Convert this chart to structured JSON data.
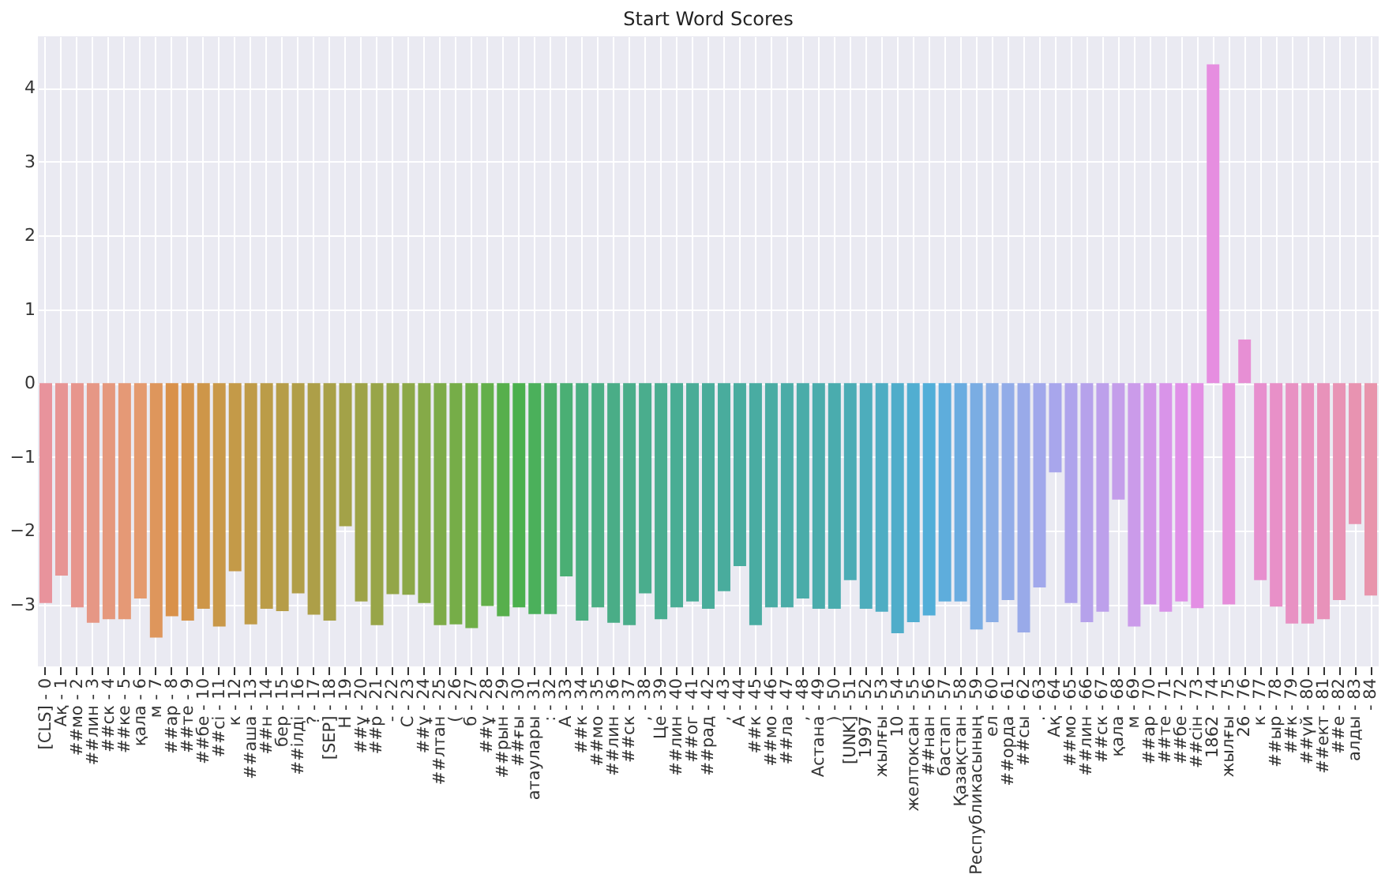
{
  "chart_data": {
    "type": "bar",
    "title": "Start Word Scores",
    "categories": [
      "[CLS] - 0",
      "Ақ - 1",
      "##мо - 2",
      "##лин - 3",
      "##ск - 4",
      "##ке - 5",
      "қала - 6",
      "м - 7",
      "##ар - 8",
      "##те - 9",
      "##бе - 10",
      "##сі - 11",
      "к - 12",
      "##аша - 13",
      "##н - 14",
      "бер - 15",
      "##ілді - 16",
      "? - 17",
      "[SEP] - 18",
      "Н - 19",
      "##ұ - 20",
      "##р - 21",
      "- - 22",
      "С - 23",
      "##ұ - 24",
      "##лтан - 25",
      "( - 26",
      "б - 27",
      "##ұ - 28",
      "##рын - 29",
      "##ғы - 30",
      "атаулары - 31",
      ": - 32",
      "А - 33",
      "##к - 34",
      "##мо - 35",
      "##лин - 36",
      "##ск - 37",
      ", - 38",
      "Це - 39",
      "##лин - 40",
      "##ог - 41",
      "##рад - 42",
      ", - 43",
      "А - 44",
      "##к - 45",
      "##мо - 46",
      "##ла - 47",
      ", - 48",
      "Астана - 49",
      ") - 50",
      "[UNK] - 51",
      "1997 - 52",
      "жылғы - 53",
      "10 - 54",
      "желтоксан - 55",
      "##нан - 56",
      "бастап - 57",
      "Қазақстан - 58",
      "Республикасының - 59",
      "ел - 60",
      "##орда - 61",
      "##сы - 62",
      ". - 63",
      "Ақ - 64",
      "##мо - 65",
      "##лин - 66",
      "##ск - 67",
      "қала - 68",
      "м - 69",
      "##ар - 70",
      "##те - 71",
      "##бе - 72",
      "##сін - 73",
      "1862 - 74",
      "жылғы - 75",
      "26 - 76",
      "к - 77",
      "##ыр - 78",
      "##к - 79",
      "##үй - 80",
      "##ект - 81",
      "##е - 82",
      "алды - 83",
      "- 84"
    ],
    "values": [
      -2.98,
      -2.61,
      -3.04,
      -3.25,
      -3.2,
      -3.2,
      -2.92,
      -3.45,
      -3.16,
      -3.22,
      -3.06,
      -3.3,
      -2.55,
      -3.27,
      -3.06,
      -3.09,
      -2.85,
      -3.14,
      -3.22,
      -1.94,
      -2.96,
      -3.28,
      -2.86,
      -2.87,
      -2.98,
      -3.28,
      -3.27,
      -3.32,
      -3.02,
      -3.16,
      -3.04,
      -3.13,
      -3.13,
      -2.62,
      -3.22,
      -3.04,
      -3.25,
      -3.28,
      -2.85,
      -3.2,
      -3.04,
      -2.96,
      -3.06,
      -2.82,
      -2.48,
      -3.28,
      -3.04,
      -3.04,
      -2.92,
      -3.06,
      -3.06,
      -2.67,
      -3.06,
      -3.1,
      -3.39,
      -3.24,
      -3.15,
      -2.96,
      -2.96,
      -3.34,
      -3.24,
      -2.94,
      -3.38,
      -2.77,
      -1.21,
      -2.98,
      -3.24,
      -3.1,
      -1.58,
      -3.3,
      -3.0,
      -3.1,
      -2.96,
      -3.05,
      4.32,
      -3.0,
      0.59,
      -2.67,
      -3.03,
      -3.26,
      -3.26,
      -3.2,
      -2.94,
      -1.91,
      -2.88
    ],
    "colors": [
      "#e8939c",
      "#e79494",
      "#e7958d",
      "#e69785",
      "#e5987d",
      "#e59976",
      "#e49a6e",
      "#de965c",
      "#d9914a",
      "#d4934a",
      "#ce9649",
      "#c99849",
      "#c49a48",
      "#bf9b48",
      "#bb9c48",
      "#b69d48",
      "#b19e48",
      "#ad9f48",
      "#a8a048",
      "#a3a248",
      "#9ea348",
      "#98a548",
      "#93a648",
      "#8ca848",
      "#85aa48",
      "#7dab48",
      "#76ad48",
      "#6fae48",
      "#63af4a",
      "#57af4c",
      "#4bb04e",
      "#4bb05b",
      "#4baf67",
      "#4aaf74",
      "#4aae80",
      "#4aae83",
      "#4aad87",
      "#4aad8a",
      "#4aad8d",
      "#49ad90",
      "#49ad94",
      "#49ac97",
      "#49ac9a",
      "#49ac9d",
      "#49ac9f",
      "#49aca2",
      "#4aaca4",
      "#4aaca7",
      "#4aaca9",
      "#4aacac",
      "#4aacae",
      "#4bacb5",
      "#4dadbc",
      "#4eadc3",
      "#4fadca",
      "#51aed1",
      "#52aed8",
      "#5eaddc",
      "#6aace0",
      "#7aade3",
      "#8aaee6",
      "#92ace8",
      "#99aae9",
      "#a1a8eb",
      "#a8a6ec",
      "#afa4ec",
      "#b6a2eb",
      "#bda0eb",
      "#c49eea",
      "#cb9bea",
      "#d297e9",
      "#d994e9",
      "#e090e8",
      "#e38fe4",
      "#e68ee0",
      "#e68eda",
      "#e78fd4",
      "#e78fce",
      "#e890c8",
      "#e891c3",
      "#e891bf",
      "#e892ba",
      "#e893b5",
      "#e893b1",
      "#e894ac"
    ],
    "ylim": [
      -3.84,
      4.7
    ],
    "yticks": [
      -3,
      -2,
      -1,
      0,
      1,
      2,
      3,
      4
    ],
    "grid": true
  }
}
